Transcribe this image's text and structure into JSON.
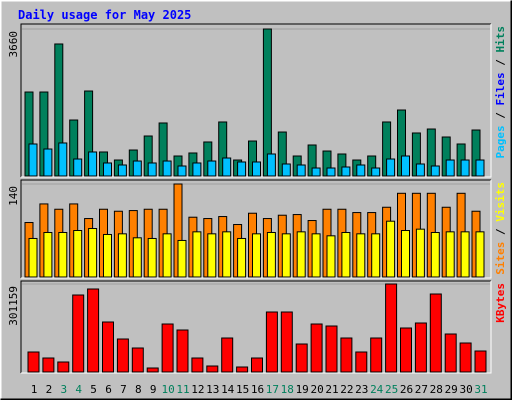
{
  "chart_data": {
    "type": "bar",
    "title": "Daily usage for May 2025",
    "categories": [
      "1",
      "2",
      "3",
      "4",
      "5",
      "6",
      "7",
      "8",
      "9",
      "10",
      "11",
      "12",
      "13",
      "14",
      "15",
      "16",
      "17",
      "18",
      "19",
      "20",
      "21",
      "22",
      "23",
      "24",
      "25",
      "26",
      "27",
      "28",
      "29",
      "30",
      "31"
    ],
    "category_colors": [
      "#000",
      "#000",
      "#00805c",
      "#00805c",
      "#000",
      "#000",
      "#000",
      "#000",
      "#000",
      "#00805c",
      "#00805c",
      "#000",
      "#000",
      "#000",
      "#000",
      "#000",
      "#00805c",
      "#00805c",
      "#000",
      "#000",
      "#000",
      "#000",
      "#000",
      "#00805c",
      "#00805c",
      "#000",
      "#000",
      "#000",
      "#000",
      "#000",
      "#00805c"
    ],
    "panels": [
      {
        "ylim": [
          0,
          3660
        ],
        "yticks": [
          3660
        ],
        "side_label": [
          {
            "text": "Pages",
            "color": "#00c0ff"
          },
          {
            "text": "/",
            "color": "#000"
          },
          {
            "text": "Files",
            "color": "#0000ff"
          },
          {
            "text": "/",
            "color": "#000"
          },
          {
            "text": "Hits",
            "color": "#00805c"
          }
        ],
        "series": [
          {
            "name": "Hits",
            "color": "#00805c",
            "values": [
              2091,
              2091,
              3287,
              1394,
              2116,
              598,
              398,
              647,
              996,
              1320,
              498,
              573,
              847,
              1345,
              398,
              871,
              3660,
              1095,
              498,
              772,
              622,
              548,
              398,
              498,
              1345,
              1643,
              1071,
              1170,
              971,
              797,
              1145
            ]
          },
          {
            "name": "Pages",
            "color": "#00c0ff",
            "values": [
              797,
              672,
              822,
              423,
              598,
              324,
              274,
              373,
              324,
              373,
              249,
              324,
              373,
              448,
              349,
              349,
              548,
              299,
              274,
              199,
              199,
              224,
              274,
              199,
              423,
              498,
              299,
              249,
              398,
              398,
              398
            ]
          }
        ]
      },
      {
        "ylim": [
          0,
          140
        ],
        "yticks": [
          140
        ],
        "side_label": [
          {
            "text": "Sites",
            "color": "#ff8000"
          },
          {
            "text": "/",
            "color": "#000"
          },
          {
            "text": "Visits",
            "color": "#ffff00"
          }
        ],
        "series": [
          {
            "name": "Sites",
            "color": "#ff8000",
            "values": [
              82,
              110,
              102,
              110,
              88,
              102,
              99,
              100,
              102,
              102,
              140,
              90,
              88,
              91,
              79,
              96,
              88,
              93,
              94,
              85,
              102,
              102,
              97,
              97,
              105,
              126,
              126,
              126,
              105,
              126,
              99
            ]
          },
          {
            "name": "Visits",
            "color": "#ffff00",
            "values": [
              58,
              67,
              67,
              70,
              73,
              64,
              65,
              59,
              58,
              65,
              55,
              68,
              65,
              68,
              58,
              65,
              67,
              65,
              68,
              65,
              62,
              67,
              65,
              65,
              84,
              70,
              72,
              67,
              68,
              68,
              68
            ]
          }
        ]
      },
      {
        "ylim": [
          0,
          301159
        ],
        "yticks": [
          301159
        ],
        "side_label": [
          {
            "text": "KBytes",
            "color": "#ff0000"
          }
        ],
        "series": [
          {
            "name": "KBytes",
            "color": "#ff0000",
            "values": [
              68445,
              47912,
              34222,
              263517,
              284051,
              171115,
              112936,
              82135,
              13689,
              164270,
              143736,
              47912,
              20534,
              116358,
              17111,
              47912,
              205338,
              205338,
              95824,
              164270,
              157425,
              116358,
              68445,
              116358,
              301159,
              150580,
              167693,
              266939,
              130047,
              99246,
              71868
            ]
          }
        ]
      }
    ]
  }
}
